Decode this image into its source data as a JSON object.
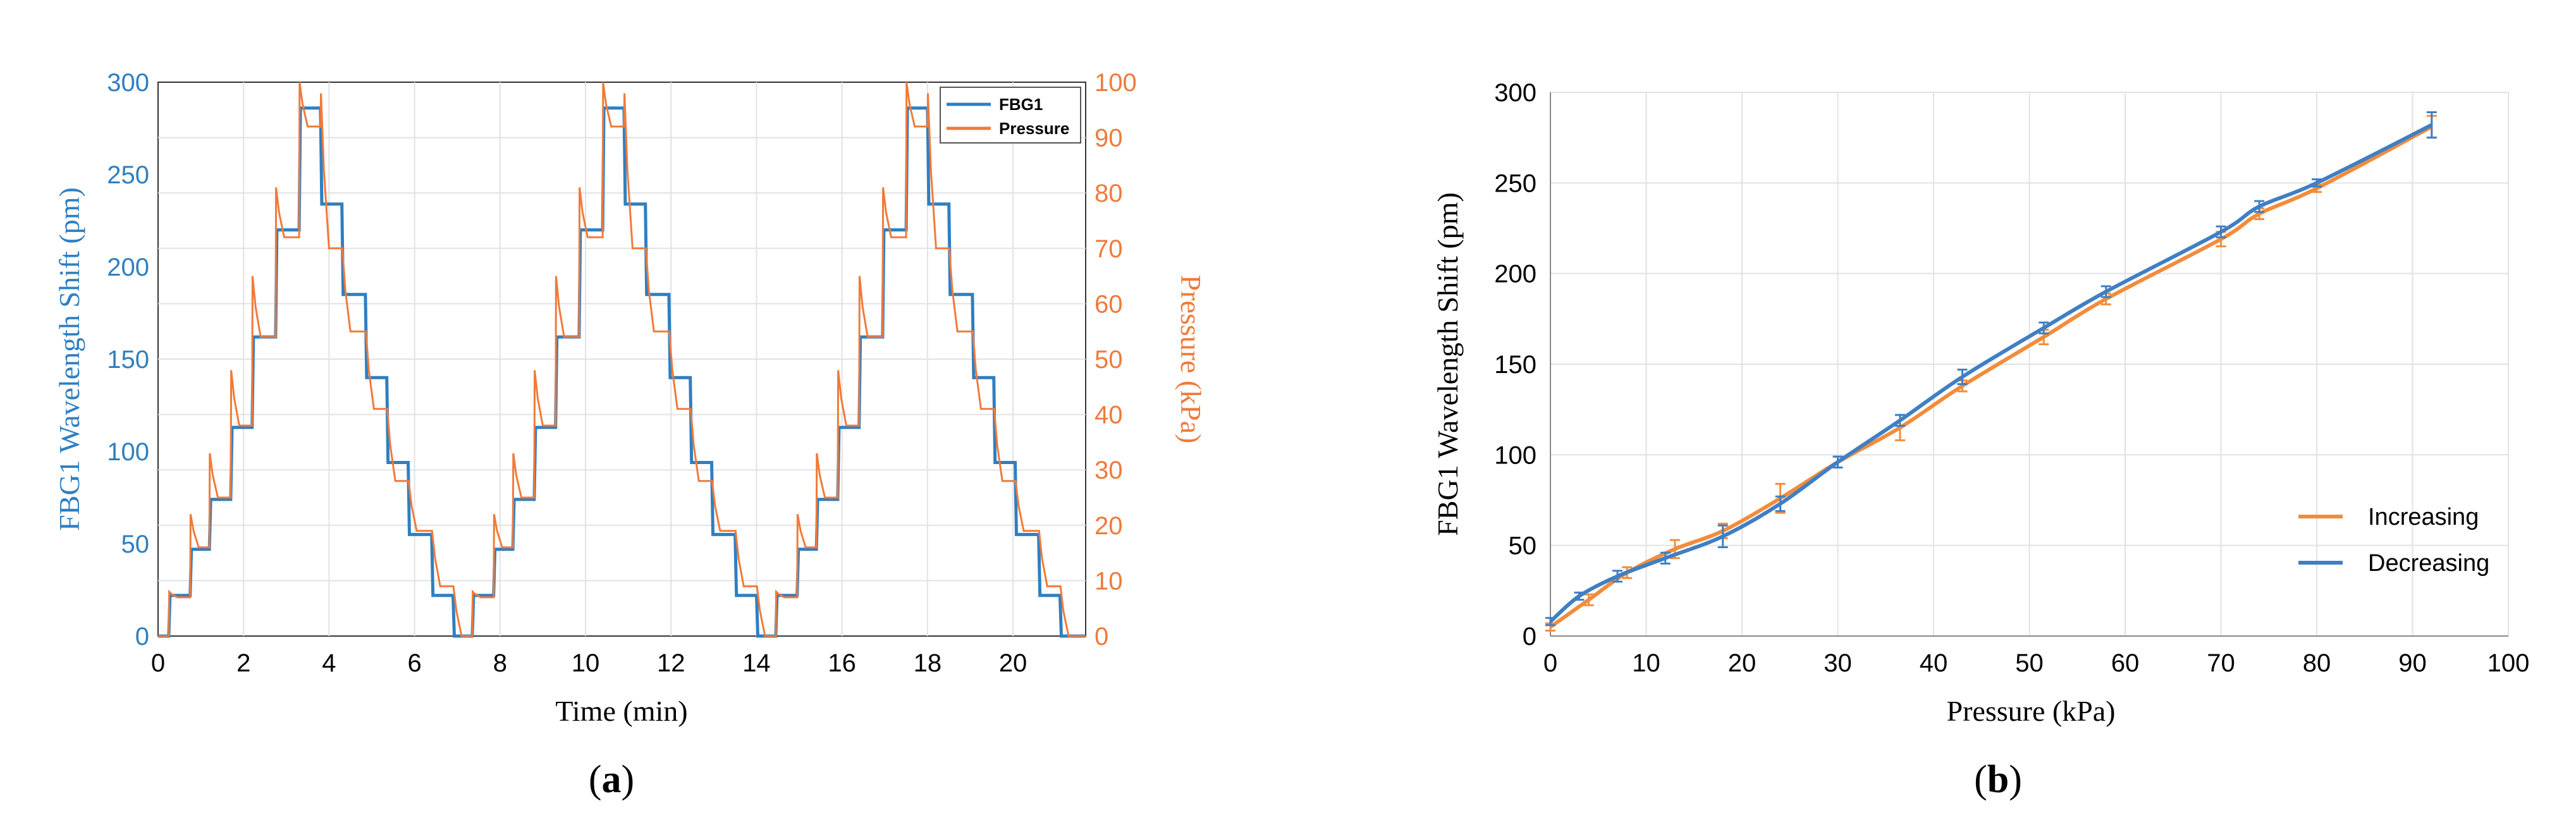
{
  "colors": {
    "fbg": "#2f7fc1",
    "pressure": "#f07a3a",
    "increasing": "#f28c3c",
    "decreasing": "#3f7fc4",
    "grid": "#e2e2e2",
    "axis": "#333333"
  },
  "panel_a": {
    "label_text": "(a)",
    "label_letter": "a",
    "xlabel": "Time (min)",
    "ylabel_left": "FBG1 Wavelength  Shift (pm)",
    "ylabel_right": "Pressure (kPa)",
    "xticks": [
      "0",
      "2",
      "4",
      "6",
      "8",
      "10",
      "12",
      "14",
      "16",
      "18",
      "20"
    ],
    "yticks_left": [
      "0",
      "50",
      "100",
      "150",
      "200",
      "250",
      "300"
    ],
    "yticks_right": [
      "0",
      "10",
      "20",
      "30",
      "40",
      "50",
      "60",
      "70",
      "80",
      "90",
      "100"
    ],
    "legend": [
      "FBG1",
      "Pressure"
    ]
  },
  "panel_b": {
    "label_text": "(b)",
    "label_letter": "b",
    "xlabel": "Pressure (kPa)",
    "ylabel": "FBG1 Wavelength  Shift (pm)",
    "xticks": [
      "0",
      "10",
      "20",
      "30",
      "40",
      "50",
      "60",
      "70",
      "80",
      "90",
      "100"
    ],
    "yticks": [
      "0",
      "50",
      "100",
      "150",
      "200",
      "250",
      "300"
    ],
    "legend": [
      "Increasing",
      "Decreasing"
    ]
  },
  "chart_data": [
    {
      "type": "line",
      "xlim": [
        0,
        21.7
      ],
      "ylim_left": [
        0,
        300
      ],
      "ylim_right": [
        0,
        100
      ],
      "grid": true,
      "legend_position": "top-right",
      "cycles_start_min": [
        0,
        7.1,
        14.2
      ],
      "step_times_rel_min": [
        0.25,
        0.75,
        1.2,
        1.7,
        2.2,
        2.75,
        3.3,
        3.8,
        4.3,
        4.85,
        5.35,
        5.85,
        6.4,
        6.9
      ],
      "series": [
        {
          "name": "FBG1",
          "axis": "left",
          "levels_pm": [
            0,
            22,
            47,
            74,
            113,
            162,
            220,
            286,
            234,
            185,
            140,
            94,
            55,
            22,
            0
          ]
        },
        {
          "name": "Pressure",
          "axis": "right",
          "levels_kPa": [
            0,
            7,
            16,
            25,
            38,
            54,
            72,
            92,
            70,
            55,
            41,
            28,
            19,
            9,
            0
          ],
          "overshoot_kPa": [
            0,
            8,
            22,
            33,
            48,
            65,
            81,
            100,
            98,
            70,
            55,
            41,
            28,
            19,
            9
          ]
        }
      ]
    },
    {
      "type": "line",
      "xlim": [
        0,
        100
      ],
      "ylim": [
        0,
        300
      ],
      "grid": true,
      "legend_position": "right",
      "series": [
        {
          "name": "Increasing",
          "x": [
            0,
            4,
            8,
            13,
            18,
            24,
            30,
            36.5,
            43,
            51.5,
            58,
            70,
            74,
            80,
            92
          ],
          "y": [
            5,
            20,
            35,
            48,
            58,
            76,
            96,
            115,
            138,
            165,
            186,
            219,
            233,
            247,
            281
          ],
          "err": [
            2,
            3,
            3,
            5,
            4,
            8,
            3,
            7,
            3,
            4,
            3,
            4,
            3,
            2,
            6
          ]
        },
        {
          "name": "Decreasing",
          "x": [
            0,
            3,
            7,
            12,
            18,
            24,
            30,
            36.5,
            43,
            51.5,
            58,
            70,
            74,
            80,
            92
          ],
          "y": [
            8,
            22,
            33,
            43,
            55,
            73,
            96,
            119,
            143,
            170,
            190,
            223,
            237,
            250,
            282
          ],
          "err": [
            2,
            2,
            3,
            3,
            6,
            4,
            3,
            3,
            4,
            3,
            3,
            3,
            3,
            2,
            7
          ]
        }
      ]
    }
  ]
}
